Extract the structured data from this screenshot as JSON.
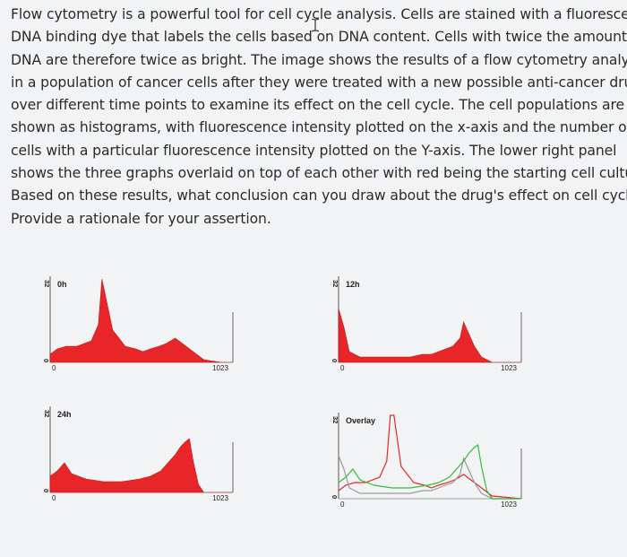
{
  "question": {
    "lines": [
      "Flow cytometry is a powerful tool for cell cycle analysis. Cells are stained with a fluorescent",
      "DNA binding dye that labels the cells based on DNA content. Cells with twice the amount of",
      "DNA are therefore twice as bright. The image shows the results of a flow cytometry analysis",
      "in a population of cancer cells after they were treated with a new possible anti-cancer drug",
      "over different time points to examine its effect on the cell cycle. The cell populations are",
      "shown as histograms, with fluorescence intensity plotted on the x-axis and the number of",
      "cells with a particular fluorescence intensity plotted on the Y-axis. The lower right panel",
      "shows the three graphs overlaid on top of each other with red being the starting cell culture.",
      "Based on these results, what conclusion can you draw about the drug's effect on cell cycle?",
      "Provide a rationale for your assertion."
    ]
  },
  "colors": {
    "fill_red": "#e8262a",
    "overlay_red": "#e03a3a",
    "overlay_green": "#2fbf3a",
    "overlay_gray": "#9a9a9a"
  },
  "chart_data": [
    {
      "type": "area",
      "label": "0h",
      "ymax_label": "32",
      "xticks": [
        "0",
        "1023"
      ],
      "xlim": [
        0,
        1023
      ],
      "series": [
        {
          "color": "red",
          "x": [
            0,
            40,
            90,
            150,
            230,
            270,
            290,
            350,
            420,
            480,
            520,
            560,
            610,
            650,
            700,
            760,
            860,
            960,
            1023
          ],
          "y": [
            3,
            5,
            6,
            6,
            8,
            14,
            31,
            12,
            6,
            5,
            4,
            5,
            6,
            7,
            9,
            6,
            1,
            0,
            0
          ]
        }
      ]
    },
    {
      "type": "area",
      "label": "12h",
      "ymax_label": "32",
      "xticks": [
        "0",
        "1023"
      ],
      "xlim": [
        0,
        1023
      ],
      "series": [
        {
          "color": "red",
          "x": [
            0,
            30,
            60,
            120,
            200,
            300,
            400,
            470,
            520,
            560,
            600,
            640,
            680,
            700,
            720,
            760,
            800,
            860,
            1023
          ],
          "y": [
            20,
            13,
            4,
            2,
            2,
            2,
            2,
            3,
            3,
            4,
            5,
            6,
            9,
            15,
            12,
            6,
            2,
            0,
            0
          ]
        }
      ]
    },
    {
      "type": "area",
      "label": "24h",
      "ymax_label": "32",
      "xticks": [
        "0",
        "1023"
      ],
      "xlim": [
        0,
        1023
      ],
      "series": [
        {
          "color": "red",
          "x": [
            0,
            40,
            80,
            120,
            200,
            300,
            400,
            500,
            560,
            620,
            660,
            700,
            730,
            760,
            780,
            800,
            830,
            860,
            1023
          ],
          "y": [
            6,
            8,
            11,
            7,
            5,
            4,
            4,
            5,
            6,
            8,
            11,
            14,
            17,
            19,
            20,
            12,
            3,
            0,
            0
          ]
        }
      ]
    },
    {
      "type": "line",
      "label": "Overlay",
      "ymax_label": "32",
      "xticks": [
        "0",
        "1023"
      ],
      "xlim": [
        0,
        1023
      ],
      "series": [
        {
          "color": "red",
          "x": [
            0,
            40,
            90,
            150,
            230,
            270,
            290,
            310,
            350,
            420,
            480,
            520,
            560,
            610,
            650,
            700,
            760,
            860,
            1023
          ],
          "y": [
            3,
            5,
            6,
            6,
            8,
            14,
            31,
            31,
            12,
            6,
            5,
            4,
            5,
            6,
            7,
            9,
            6,
            1,
            0
          ]
        },
        {
          "color": "gray",
          "x": [
            0,
            30,
            60,
            120,
            200,
            300,
            400,
            470,
            520,
            560,
            600,
            640,
            680,
            700,
            720,
            760,
            800,
            860,
            1023
          ],
          "y": [
            16,
            11,
            4,
            2,
            2,
            2,
            2,
            3,
            3,
            4,
            5,
            6,
            9,
            15,
            12,
            6,
            2,
            0,
            0
          ]
        },
        {
          "color": "green",
          "x": [
            0,
            40,
            80,
            120,
            200,
            300,
            400,
            500,
            560,
            620,
            660,
            700,
            730,
            760,
            780,
            800,
            830,
            860,
            1023
          ],
          "y": [
            6,
            8,
            11,
            7,
            5,
            4,
            4,
            5,
            6,
            8,
            11,
            14,
            17,
            19,
            20,
            12,
            3,
            0,
            0
          ]
        }
      ]
    }
  ]
}
